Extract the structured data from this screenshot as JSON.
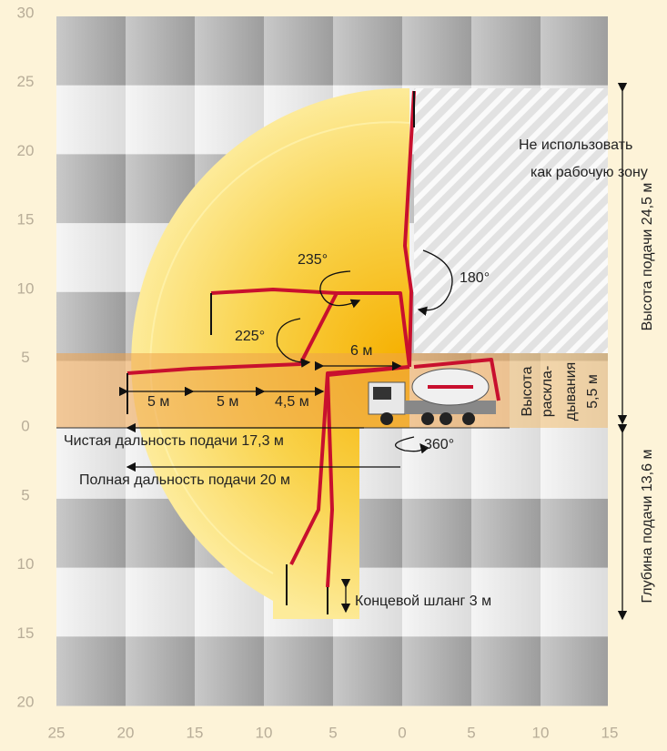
{
  "y_axis_labels": [
    "30",
    "25",
    "20",
    "15",
    "10",
    "5",
    "0",
    "5",
    "10",
    "15",
    "20"
  ],
  "x_axis_labels": [
    "25",
    "20",
    "15",
    "10",
    "5",
    "0",
    "5",
    "10",
    "15"
  ],
  "no_use_zone": [
    "Не использовать",
    "как рабочую зону"
  ],
  "angles": {
    "a235": "235°",
    "a180": "180°",
    "a225": "225°",
    "a360": "360°"
  },
  "distances": {
    "six": "6 м",
    "seg1": "5 м",
    "seg2": "5 м",
    "seg3": "4,5 м"
  },
  "unfold_height": [
    "Высота",
    "раскла-",
    "дывания",
    "5,5 м"
  ],
  "net_reach": "Чистая дальность подачи 17,3 м",
  "full_reach": "Полная дальность подачи 20 м",
  "end_hose": "Концевой шланг 3 м",
  "delivery_height": "Высота подачи 24,5 м",
  "delivery_depth": "Глубина подачи 13,6 м"
}
